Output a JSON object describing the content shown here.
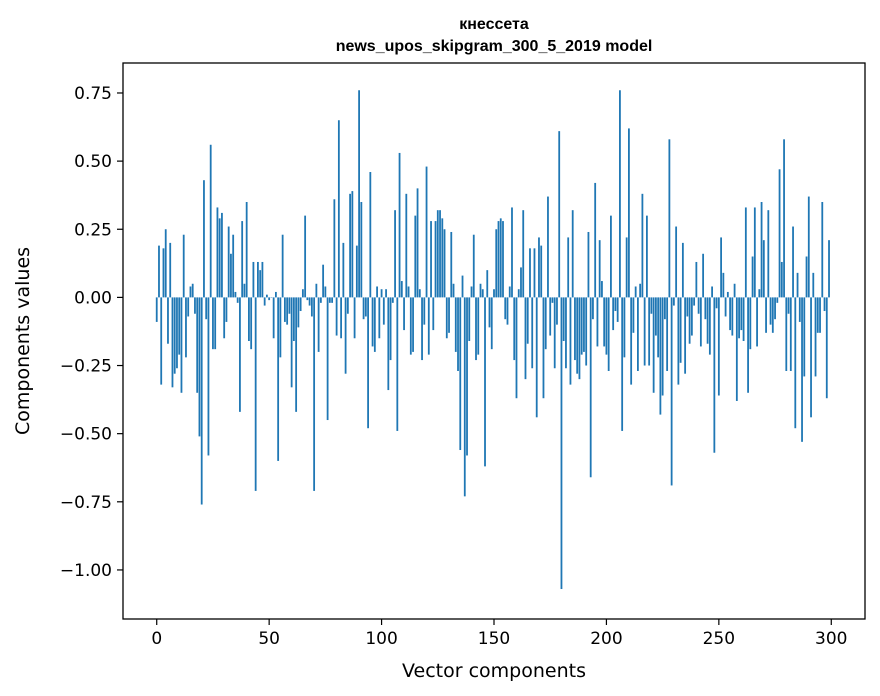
{
  "chart_data": {
    "type": "bar",
    "title_line1": "кнессета",
    "title_line2": "news_upos_skipgram_300_5_2019 model",
    "xlabel": "Vector components",
    "ylabel": "Components values",
    "xlim": [
      -15,
      315
    ],
    "ylim": [
      -1.18,
      0.86
    ],
    "xticks": [
      0,
      50,
      100,
      150,
      200,
      250,
      300
    ],
    "xtick_labels": [
      "0",
      "50",
      "100",
      "150",
      "200",
      "250",
      "300"
    ],
    "yticks": [
      0.75,
      0.5,
      0.25,
      0.0,
      -0.25,
      -0.5,
      -0.75,
      -1.0
    ],
    "ytick_labels": [
      "0.75",
      "0.50",
      "0.25",
      "0.00",
      "−0.25",
      "−0.50",
      "−0.75",
      "−1.00"
    ],
    "bar_color": "#1f77b4",
    "values": [
      -0.09,
      0.19,
      -0.32,
      0.18,
      0.25,
      -0.17,
      0.2,
      -0.33,
      -0.28,
      -0.26,
      -0.21,
      -0.35,
      0.23,
      -0.22,
      -0.07,
      0.04,
      0.05,
      -0.06,
      -0.35,
      -0.51,
      -0.76,
      0.43,
      -0.08,
      -0.58,
      0.56,
      -0.19,
      -0.19,
      0.33,
      0.29,
      0.31,
      -0.15,
      -0.09,
      0.26,
      0.16,
      0.23,
      0.02,
      -0.02,
      -0.42,
      0.28,
      0.05,
      0.35,
      -0.16,
      -0.19,
      0.13,
      -0.71,
      0.13,
      0.1,
      0.13,
      -0.03,
      0.01,
      -0.01,
      0.0,
      -0.15,
      0.02,
      -0.6,
      -0.22,
      0.23,
      -0.09,
      -0.1,
      -0.06,
      -0.33,
      -0.16,
      -0.42,
      -0.11,
      -0.05,
      0.03,
      0.3,
      -0.01,
      -0.03,
      -0.07,
      -0.71,
      0.05,
      -0.2,
      -0.02,
      0.12,
      0.04,
      -0.45,
      -0.02,
      -0.02,
      0.36,
      -0.14,
      0.65,
      -0.15,
      0.2,
      -0.28,
      -0.06,
      0.38,
      0.39,
      -0.15,
      0.19,
      0.76,
      0.35,
      -0.08,
      -0.07,
      -0.48,
      0.46,
      -0.18,
      -0.2,
      0.04,
      -0.15,
      0.03,
      -0.1,
      0.03,
      -0.34,
      -0.23,
      -0.02,
      0.32,
      -0.49,
      0.53,
      0.06,
      -0.12,
      0.38,
      0.04,
      -0.21,
      -0.2,
      0.3,
      0.4,
      0.03,
      -0.23,
      -0.1,
      0.48,
      -0.21,
      0.28,
      -0.12,
      0.28,
      0.32,
      0.32,
      0.29,
      0.25,
      -0.15,
      -0.13,
      0.24,
      0.05,
      -0.2,
      -0.27,
      -0.56,
      0.08,
      -0.73,
      -0.58,
      -0.16,
      0.04,
      0.23,
      -0.23,
      -0.21,
      0.05,
      0.03,
      -0.62,
      0.1,
      -0.11,
      -0.19,
      0.03,
      0.25,
      0.28,
      0.29,
      0.28,
      -0.08,
      -0.1,
      0.04,
      0.33,
      -0.23,
      -0.37,
      0.03,
      0.11,
      0.32,
      -0.3,
      -0.17,
      0.18,
      -0.26,
      0.18,
      -0.44,
      0.22,
      0.19,
      -0.37,
      -0.19,
      0.37,
      -0.14,
      -0.02,
      -0.26,
      -0.1,
      0.61,
      -1.07,
      -0.16,
      -0.26,
      0.22,
      -0.32,
      0.32,
      -0.23,
      -0.28,
      -0.3,
      -0.21,
      -0.2,
      -0.25,
      0.24,
      -0.66,
      -0.08,
      0.42,
      -0.18,
      0.21,
      0.06,
      -0.18,
      -0.21,
      -0.27,
      0.3,
      -0.12,
      -0.05,
      -0.09,
      0.76,
      -0.49,
      -0.22,
      0.22,
      0.62,
      -0.32,
      -0.13,
      0.04,
      -0.27,
      0.05,
      0.38,
      -0.25,
      0.3,
      -0.25,
      -0.06,
      -0.35,
      -0.14,
      -0.22,
      -0.43,
      -0.36,
      -0.08,
      -0.27,
      0.58,
      -0.69,
      -0.03,
      0.26,
      -0.32,
      -0.24,
      0.2,
      -0.28,
      -0.07,
      -0.17,
      -0.14,
      -0.03,
      0.13,
      -0.06,
      -0.18,
      0.16,
      -0.08,
      -0.17,
      -0.21,
      0.04,
      -0.57,
      -0.04,
      -0.36,
      0.22,
      0.09,
      -0.07,
      0.02,
      -0.12,
      -0.14,
      0.05,
      -0.38,
      -0.15,
      -0.12,
      -0.16,
      0.33,
      -0.35,
      -0.19,
      0.15,
      0.33,
      -0.18,
      0.03,
      0.35,
      0.21,
      -0.13,
      0.32,
      -0.1,
      -0.13,
      -0.08,
      -0.02,
      0.47,
      0.13,
      0.58,
      -0.27,
      -0.06,
      -0.27,
      0.26,
      -0.48,
      0.09,
      -0.09,
      -0.53,
      -0.29,
      0.15,
      0.37,
      -0.44,
      0.09,
      -0.29,
      -0.13,
      -0.13,
      0.35,
      -0.05,
      -0.37,
      0.21
    ]
  }
}
